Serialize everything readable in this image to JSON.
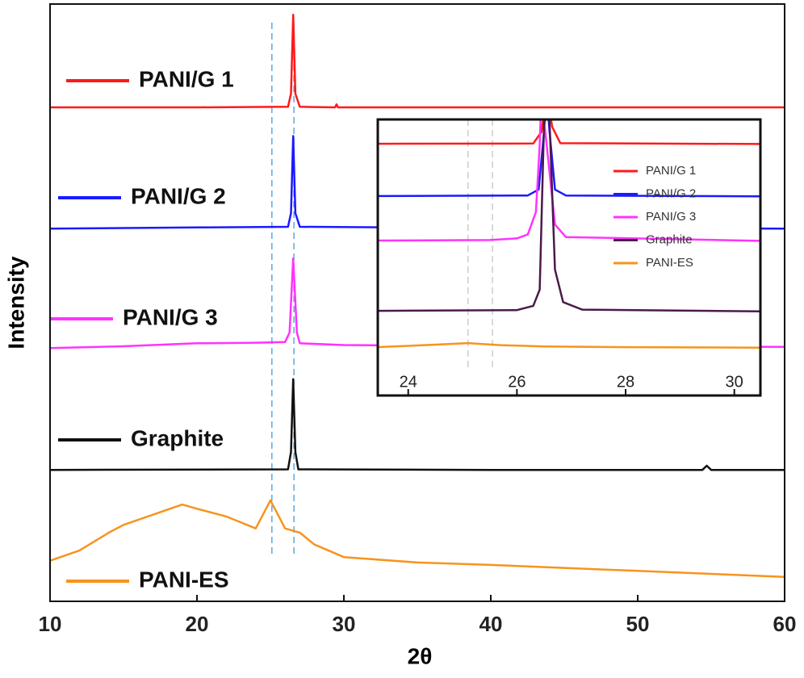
{
  "chart_data": [
    {
      "type": "line",
      "xlabel": "2θ",
      "ylabel": "Intensity",
      "xlim": [
        10,
        60
      ],
      "xticks": [
        10,
        20,
        30,
        40,
        50,
        60
      ],
      "ylim": [
        0,
        100
      ],
      "reference_lines": [
        25.1,
        26.6
      ],
      "reference_color": "#5aa9e6",
      "series": [
        {
          "name": "PANI/G 1",
          "color": "#ff1a1a",
          "x": [
            10,
            20,
            26.2,
            26.4,
            26.55,
            26.7,
            27,
            29.4,
            29.5,
            29.6,
            40,
            60
          ],
          "values": [
            82.7,
            82.7,
            82.8,
            85,
            98.2,
            85,
            82.8,
            82.7,
            83.2,
            82.7,
            82.7,
            82.7
          ]
        },
        {
          "name": "PANI/G 2",
          "color": "#1a1aff",
          "x": [
            10,
            20,
            26.2,
            26.4,
            26.55,
            26.7,
            27,
            40,
            60
          ],
          "values": [
            62.4,
            62.6,
            62.7,
            65,
            77.9,
            65,
            62.7,
            62.5,
            62.4
          ]
        },
        {
          "name": "PANI/G 3",
          "color": "#ff33ff",
          "x": [
            10,
            15,
            20,
            24,
            26,
            26.3,
            26.55,
            26.8,
            27,
            30,
            40,
            60
          ],
          "values": [
            42.4,
            42.7,
            43.2,
            43.3,
            43.4,
            45,
            57.4,
            45,
            43.2,
            42.9,
            42.7,
            42.6
          ]
        },
        {
          "name": "Graphite",
          "color": "#111111",
          "x": [
            10,
            26.2,
            26.4,
            26.55,
            26.7,
            26.9,
            40,
            54.4,
            54.7,
            55,
            60
          ],
          "values": [
            22,
            22.1,
            25,
            37.2,
            25,
            22.1,
            22,
            22,
            22.7,
            22,
            22
          ]
        },
        {
          "name": "PANI-ES",
          "color": "#f7941d",
          "x": [
            10,
            12,
            14,
            15,
            17,
            19,
            20,
            22,
            24,
            25,
            26,
            27,
            28,
            30,
            35,
            40,
            50,
            60
          ],
          "values": [
            6.8,
            8.5,
            11.5,
            12.8,
            14.5,
            16.2,
            15.5,
            14.2,
            12.2,
            16.9,
            12.2,
            11.5,
            9.5,
            7.4,
            6.5,
            6.1,
            5.1,
            4.1
          ]
        }
      ]
    },
    {
      "type": "line",
      "xlim": [
        23.44,
        30.48
      ],
      "xticks": [
        24,
        26,
        28,
        30
      ],
      "ylim": [
        0,
        100
      ],
      "reference_lines": [
        25.1,
        25.55
      ],
      "reference_color": "#cccccc",
      "series": [
        {
          "name": "PANI/G 1",
          "color": "#ff1a1a",
          "x": [
            23.44,
            26.3,
            26.45,
            26.55,
            26.65,
            26.8,
            30.48
          ],
          "values": [
            90.3,
            90.4,
            95,
            110,
            97,
            90.5,
            90.2
          ]
        },
        {
          "name": "PANI/G 2",
          "color": "#1a1aff",
          "x": [
            23.44,
            26.2,
            26.4,
            26.5,
            26.55,
            26.6,
            26.7,
            26.9,
            30.48
          ],
          "values": [
            69.4,
            69.6,
            72,
            95,
            110,
            95,
            72,
            69.6,
            69.3
          ]
        },
        {
          "name": "PANI/G 3",
          "color": "#ff33ff",
          "x": [
            23.44,
            25.5,
            26,
            26.2,
            26.35,
            26.42,
            26.45,
            26.7,
            26.9,
            30.48
          ],
          "values": [
            51.6,
            51.8,
            52.5,
            54,
            63,
            90,
            110,
            58,
            53,
            51.5
          ]
        },
        {
          "name": "Graphite",
          "color": "#4a1a4a",
          "x": [
            23.44,
            26,
            26.3,
            26.42,
            26.5,
            26.55,
            26.6,
            26.7,
            26.85,
            27.2,
            30.48
          ],
          "values": [
            23.5,
            23.8,
            25.5,
            32,
            99,
            105,
            99,
            40,
            27,
            24,
            23.3
          ]
        },
        {
          "name": "PANI-ES",
          "color": "#f7941d",
          "x": [
            23.44,
            24.5,
            25.1,
            25.7,
            26.5,
            28,
            30.48
          ],
          "values": [
            9,
            10,
            10.6,
            9.8,
            9.3,
            9,
            8.8
          ]
        }
      ]
    }
  ]
}
